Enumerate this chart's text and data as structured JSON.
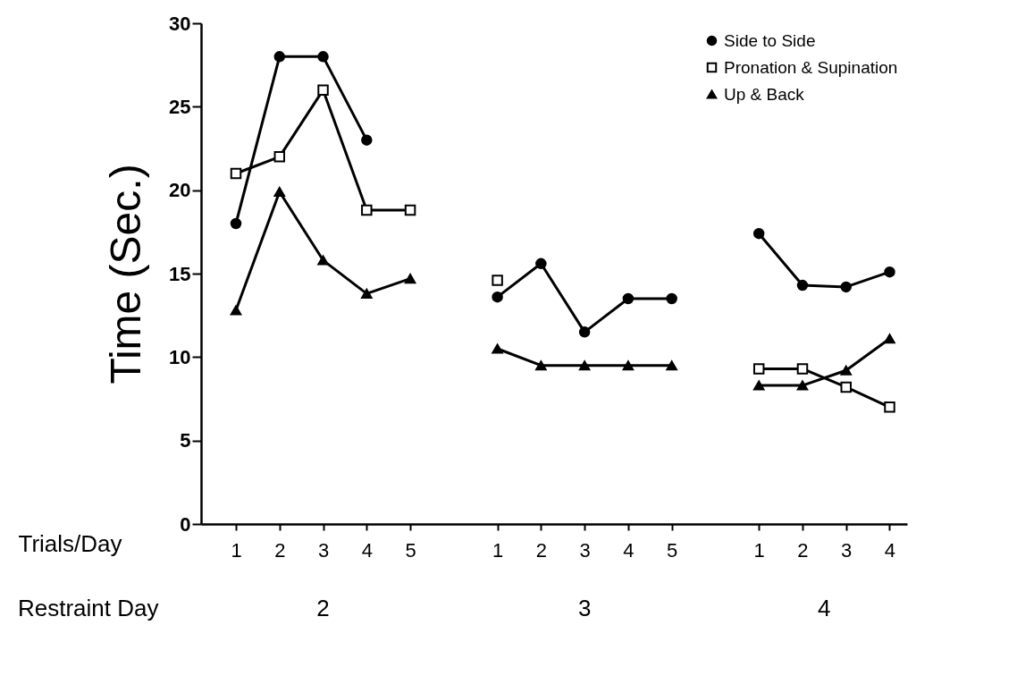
{
  "chart_data": {
    "type": "line",
    "ylabel": "Time (Sec.)",
    "xlabel": "Trials/Day",
    "categories": [
      "1",
      "2",
      "3",
      "4",
      "5",
      null,
      "1",
      "2",
      "3",
      "4",
      "5",
      null,
      "1",
      "2",
      "3",
      "4"
    ],
    "series": [
      {
        "name": "Side to Side",
        "color": "#000000",
        "marker": "circle",
        "values": [
          18,
          28,
          28,
          23,
          null,
          null,
          13.6,
          15.6,
          11.5,
          13.5,
          13.5,
          null,
          17.4,
          14.3,
          14.2,
          15.1
        ]
      },
      {
        "name": "Pronation & Supination",
        "color": "#000000",
        "marker": "square",
        "values": [
          21,
          22,
          26,
          18.8,
          18.8,
          null,
          14.6,
          null,
          null,
          null,
          null,
          null,
          9.3,
          9.3,
          8.2,
          7.0
        ]
      },
      {
        "name": "Up & Back",
        "color": "#000000",
        "marker": "triangle",
        "values": [
          12.8,
          19.9,
          15.8,
          13.8,
          14.7,
          null,
          10.5,
          9.5,
          9.5,
          9.5,
          9.5,
          null,
          8.3,
          8.3,
          9.2,
          11.1
        ]
      }
    ],
    "ylim": [
      0,
      30
    ],
    "yticks": [
      0,
      5,
      10,
      15,
      20,
      25,
      30
    ],
    "annotations": [
      "Restraint Day",
      "2",
      "3",
      "4"
    ],
    "legend": "top right",
    "grid": false
  }
}
